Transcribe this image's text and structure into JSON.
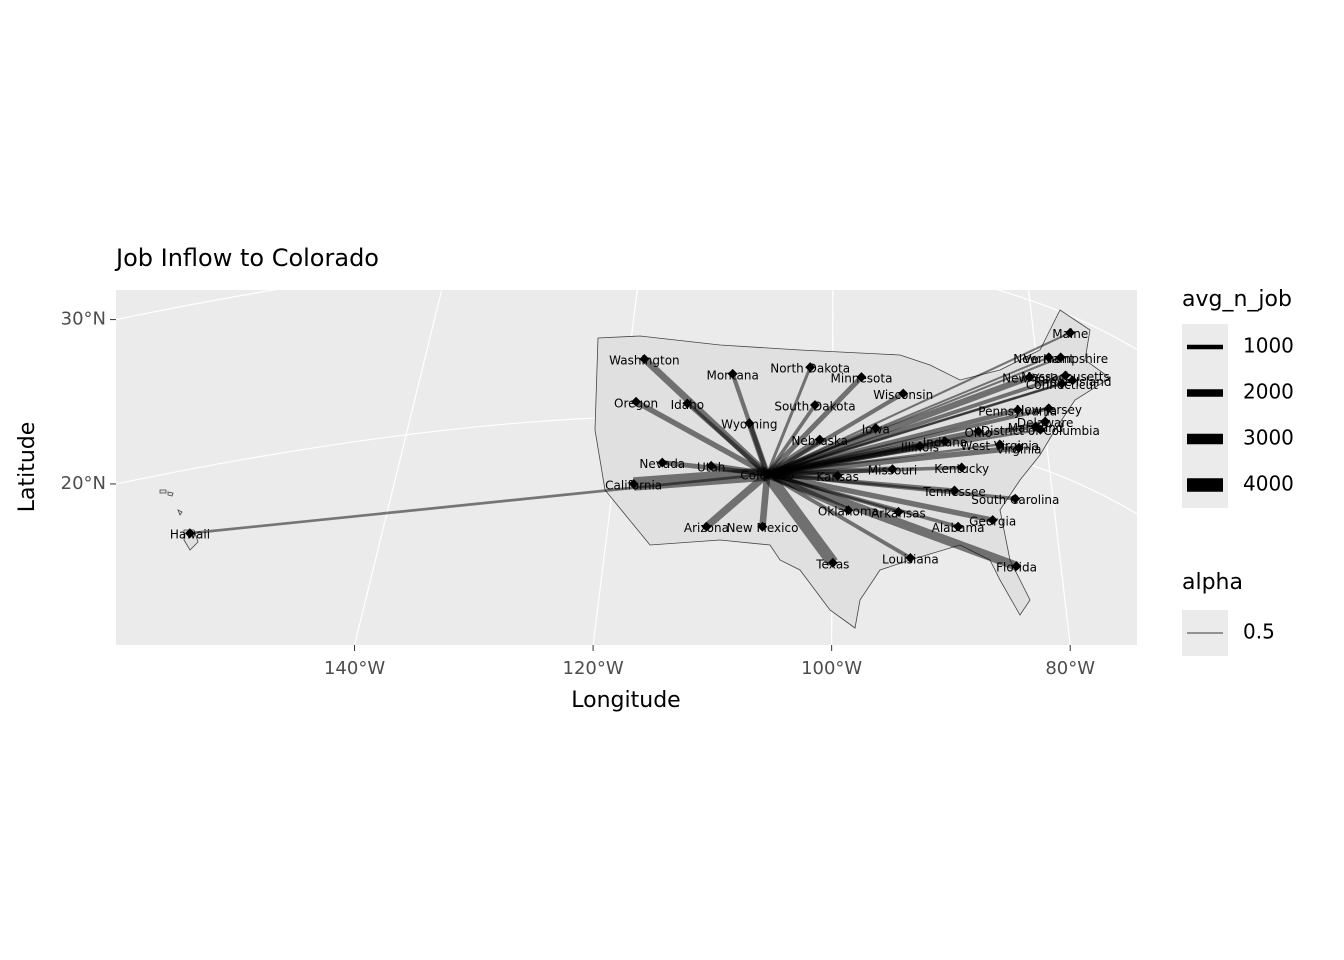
{
  "chart_data": {
    "type": "flow-map",
    "title": "Job Inflow to Colorado",
    "x_label": "Longitude",
    "y_label": "Latitude",
    "xlim": [
      -160,
      -74.4
    ],
    "ylim": [
      10.2,
      31.8
    ],
    "xticks": [
      {
        "value": -140,
        "label": "140°W"
      },
      {
        "value": -120,
        "label": "120°W"
      },
      {
        "value": -100,
        "label": "100°W"
      },
      {
        "value": -80,
        "label": "80°W"
      }
    ],
    "yticks": [
      {
        "value": 30,
        "label": "30°N"
      },
      {
        "value": 20,
        "label": "20°N"
      }
    ],
    "grid": true,
    "color": "#000000",
    "alpha": 0.5,
    "hub": {
      "name": "Colorado",
      "lon": -105.4,
      "lat": 20.6
    },
    "flows": [
      {
        "name": "Washington",
        "lon": -115.7,
        "lat": 27.6,
        "avg_n_job": 1800
      },
      {
        "name": "Montana",
        "lon": -108.3,
        "lat": 26.7,
        "avg_n_job": 900
      },
      {
        "name": "North Dakota",
        "lon": -101.8,
        "lat": 27.1,
        "avg_n_job": 500
      },
      {
        "name": "Minnesota",
        "lon": -97.5,
        "lat": 26.5,
        "avg_n_job": 1200
      },
      {
        "name": "Wisconsin",
        "lon": -94.0,
        "lat": 25.5,
        "avg_n_job": 900
      },
      {
        "name": "Oregon",
        "lon": -116.4,
        "lat": 25.0,
        "avg_n_job": 1300
      },
      {
        "name": "Idaho",
        "lon": -112.1,
        "lat": 24.9,
        "avg_n_job": 900
      },
      {
        "name": "South Dakota",
        "lon": -101.4,
        "lat": 24.8,
        "avg_n_job": 700
      },
      {
        "name": "Wyoming",
        "lon": -106.9,
        "lat": 23.7,
        "avg_n_job": 1500
      },
      {
        "name": "Iowa",
        "lon": -96.3,
        "lat": 23.4,
        "avg_n_job": 900
      },
      {
        "name": "Nebraska",
        "lon": -101.0,
        "lat": 22.7,
        "avg_n_job": 1600
      },
      {
        "name": "Nevada",
        "lon": -114.2,
        "lat": 21.3,
        "avg_n_job": 1100
      },
      {
        "name": "Utah",
        "lon": -110.1,
        "lat": 21.1,
        "avg_n_job": 1500
      },
      {
        "name": "California",
        "lon": -116.6,
        "lat": 20.0,
        "avg_n_job": 4000
      },
      {
        "name": "Kansas",
        "lon": -99.5,
        "lat": 20.5,
        "avg_n_job": 1700
      },
      {
        "name": "Missouri",
        "lon": -94.9,
        "lat": 20.9,
        "avg_n_job": 1300
      },
      {
        "name": "Kentucky",
        "lon": -89.1,
        "lat": 21.0,
        "avg_n_job": 700
      },
      {
        "name": "Illinois",
        "lon": -92.6,
        "lat": 22.3,
        "avg_n_job": 1800
      },
      {
        "name": "Indiana",
        "lon": -90.5,
        "lat": 22.6,
        "avg_n_job": 900
      },
      {
        "name": "Ohio",
        "lon": -87.7,
        "lat": 23.2,
        "avg_n_job": 1100
      },
      {
        "name": "West Virginia",
        "lon": -85.9,
        "lat": 22.4,
        "avg_n_job": 300
      },
      {
        "name": "Virginia",
        "lon": -84.3,
        "lat": 22.2,
        "avg_n_job": 1300
      },
      {
        "name": "Pennsylvania",
        "lon": -84.4,
        "lat": 24.5,
        "avg_n_job": 1100
      },
      {
        "name": "Maine",
        "lon": -80.0,
        "lat": 29.2,
        "avg_n_job": 200
      },
      {
        "name": "New Hampshire",
        "lon": -80.8,
        "lat": 27.7,
        "avg_n_job": 200
      },
      {
        "name": "Vermont",
        "lon": -81.8,
        "lat": 27.7,
        "avg_n_job": 150
      },
      {
        "name": "New York",
        "lon": -83.4,
        "lat": 26.5,
        "avg_n_job": 1600
      },
      {
        "name": "Massachusetts",
        "lon": -80.4,
        "lat": 26.6,
        "avg_n_job": 800
      },
      {
        "name": "Connecticut",
        "lon": -80.7,
        "lat": 26.1,
        "avg_n_job": 400
      },
      {
        "name": "Rhode Island",
        "lon": -79.8,
        "lat": 26.3,
        "avg_n_job": 150
      },
      {
        "name": "New Jersey",
        "lon": -81.8,
        "lat": 24.6,
        "avg_n_job": 800
      },
      {
        "name": "Delaware",
        "lon": -82.1,
        "lat": 23.8,
        "avg_n_job": 150
      },
      {
        "name": "Maryland",
        "lon": -82.9,
        "lat": 23.5,
        "avg_n_job": 700
      },
      {
        "name": "District of Columbia",
        "lon": -82.5,
        "lat": 23.3,
        "avg_n_job": 300
      },
      {
        "name": "Tennessee",
        "lon": -89.7,
        "lat": 19.6,
        "avg_n_job": 900
      },
      {
        "name": "South Carolina",
        "lon": -84.6,
        "lat": 19.1,
        "avg_n_job": 700
      },
      {
        "name": "Georgia",
        "lon": -86.5,
        "lat": 17.8,
        "avg_n_job": 1300
      },
      {
        "name": "Alabama",
        "lon": -89.4,
        "lat": 17.4,
        "avg_n_job": 700
      },
      {
        "name": "Arkansas",
        "lon": -94.4,
        "lat": 18.3,
        "avg_n_job": 600
      },
      {
        "name": "Oklahoma",
        "lon": -98.6,
        "lat": 18.4,
        "avg_n_job": 1500
      },
      {
        "name": "Arizona",
        "lon": -110.5,
        "lat": 17.4,
        "avg_n_job": 2000
      },
      {
        "name": "New Mexico",
        "lon": -105.8,
        "lat": 17.4,
        "avg_n_job": 1700
      },
      {
        "name": "Texas",
        "lon": -99.9,
        "lat": 15.2,
        "avg_n_job": 3500
      },
      {
        "name": "Louisiana",
        "lon": -93.4,
        "lat": 15.5,
        "avg_n_job": 800
      },
      {
        "name": "Florida",
        "lon": -84.5,
        "lat": 15.0,
        "avg_n_job": 2500
      },
      {
        "name": "Hawaii",
        "lon": -153.8,
        "lat": 17.0,
        "avg_n_job": 400
      }
    ],
    "size_legend": {
      "title": "avg_n_job",
      "breaks": [
        1000,
        2000,
        3000,
        4000
      ]
    },
    "alpha_legend": {
      "title": "alpha"
    }
  }
}
